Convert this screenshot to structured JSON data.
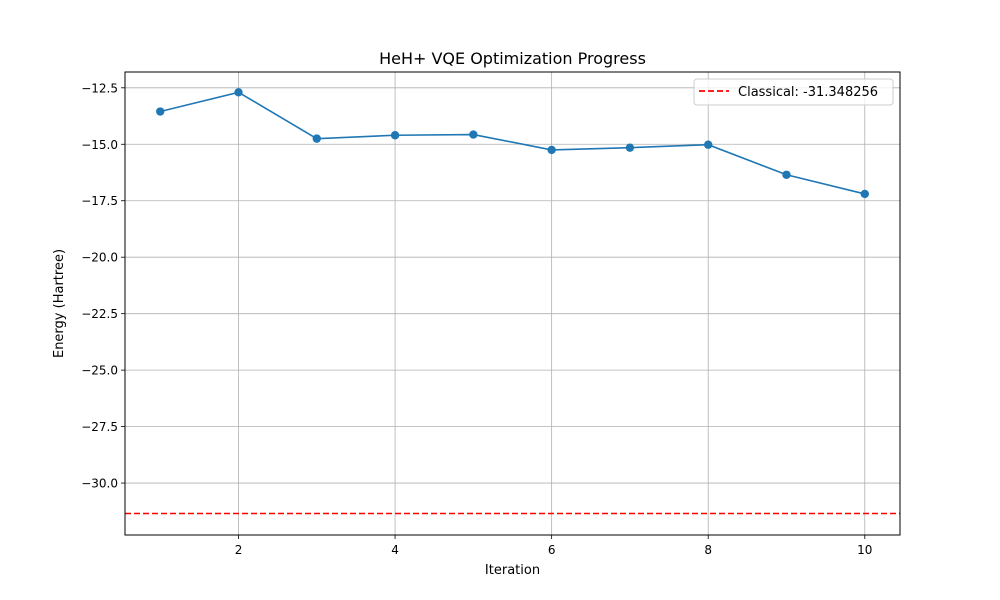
{
  "chart_data": {
    "type": "line",
    "title": "HeH+ VQE Optimization Progress",
    "xlabel": "Iteration",
    "ylabel": "Energy (Hartree)",
    "xlim": [
      0.55,
      10.45
    ],
    "ylim": [
      -32.3,
      -11.8
    ],
    "xticks": [
      2,
      4,
      6,
      8,
      10
    ],
    "yticks": [
      -30.0,
      -27.5,
      -25.0,
      -22.5,
      -20.0,
      -17.5,
      -15.0,
      -12.5
    ],
    "xtick_labels": [
      "2",
      "4",
      "6",
      "8",
      "10"
    ],
    "ytick_labels": [
      "−30.0",
      "−27.5",
      "−25.0",
      "−22.5",
      "−20.0",
      "−17.5",
      "−15.0",
      "−12.5"
    ],
    "grid": true,
    "legend_position": "top-right",
    "series": [
      {
        "x": [
          1,
          2,
          3,
          4,
          5,
          6,
          7,
          8,
          9,
          10
        ],
        "y": [
          -13.55,
          -12.7,
          -14.75,
          -14.6,
          -14.57,
          -15.25,
          -15.15,
          -15.02,
          -16.35,
          -17.2
        ],
        "color": "#1f77b4",
        "marker": "circle",
        "style": "solid"
      }
    ],
    "reference_lines": [
      {
        "name": "Classical: -31.348256",
        "y": -31.348256,
        "color": "#ff0000",
        "style": "dashed"
      }
    ]
  }
}
